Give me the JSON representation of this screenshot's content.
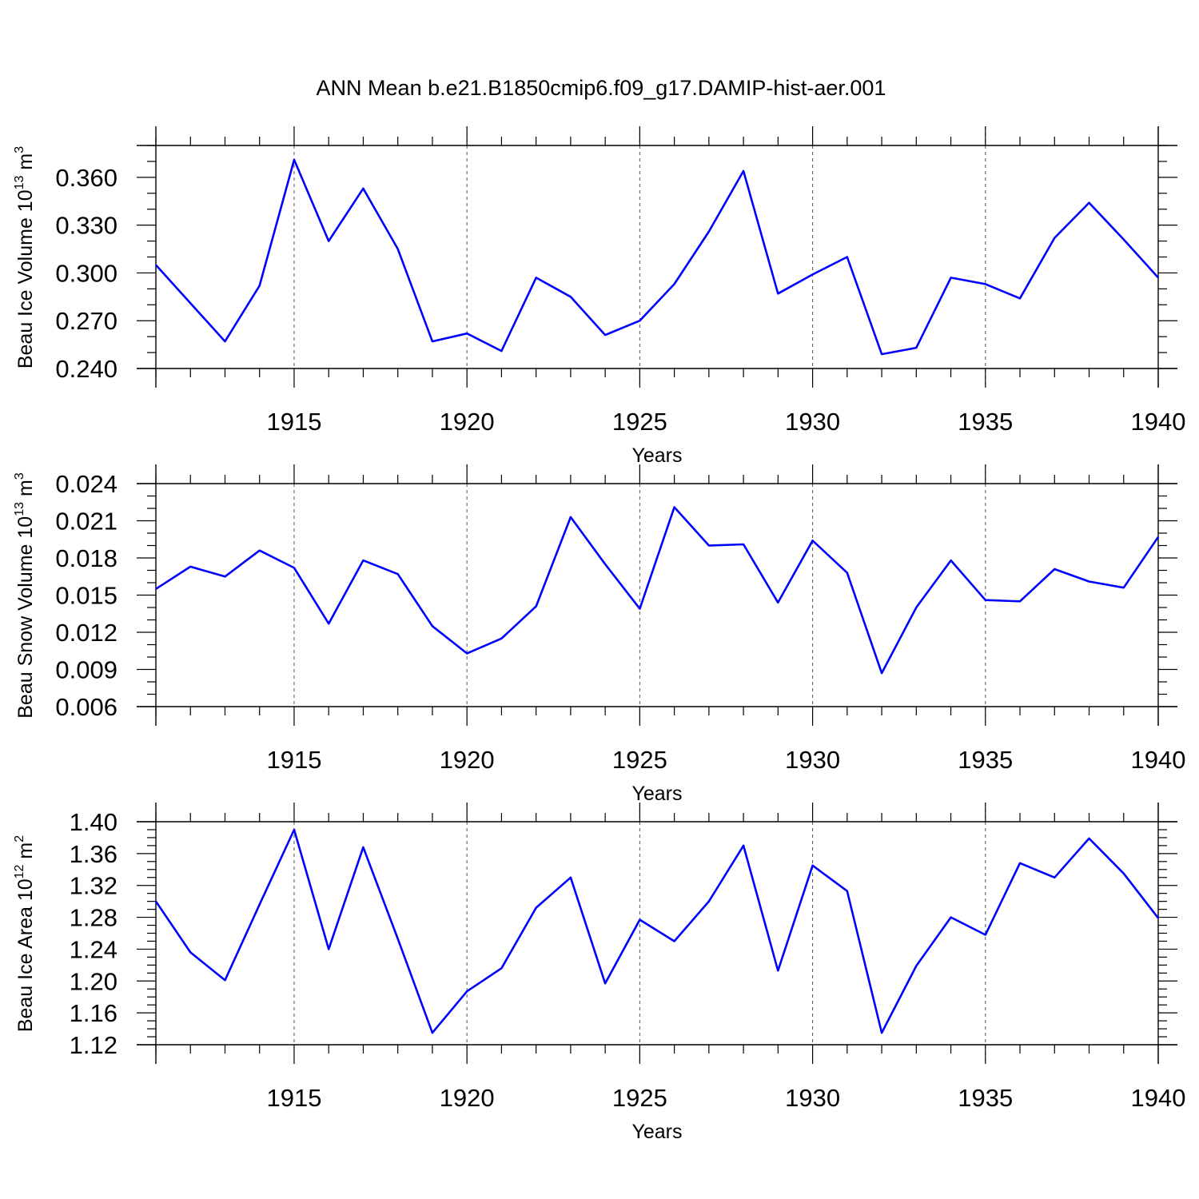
{
  "title": "ANN Mean b.e21.B1850cmip6.f09_g17.DAMIP-hist-aer.001",
  "colors": {
    "line": "#0000ff",
    "axis": "#000000",
    "grid": "#555555"
  },
  "chart_data": [
    {
      "type": "line",
      "ylabel": "Beau Ice Volume 10",
      "ylabel_exp": "13",
      "ylabel_unit": "m",
      "ylabel_unit_exp": "3",
      "xlabel": "Years",
      "xlim": [
        1911,
        1940
      ],
      "ylim": [
        0.24,
        0.38
      ],
      "yticks": [
        0.24,
        0.27,
        0.3,
        0.33,
        0.36
      ],
      "ytick_labels": [
        "0.240",
        "0.270",
        "0.300",
        "0.330",
        "0.360"
      ],
      "yminor": 0.01,
      "xticks": [
        1915,
        1920,
        1925,
        1930,
        1935,
        1940
      ],
      "xtick_labels": [
        "1915",
        "1920",
        "1925",
        "1930",
        "1935",
        "1940"
      ],
      "grid_x": [
        1915,
        1920,
        1925,
        1930,
        1935
      ],
      "x": [
        1911,
        1912,
        1913,
        1914,
        1915,
        1916,
        1917,
        1918,
        1919,
        1920,
        1921,
        1922,
        1923,
        1924,
        1925,
        1926,
        1927,
        1928,
        1929,
        1930,
        1931,
        1932,
        1933,
        1934,
        1935,
        1936,
        1937,
        1938,
        1939,
        1940
      ],
      "values": [
        0.305,
        0.281,
        0.257,
        0.292,
        0.371,
        0.32,
        0.353,
        0.315,
        0.257,
        0.262,
        0.251,
        0.297,
        0.285,
        0.261,
        0.27,
        0.293,
        0.326,
        0.364,
        0.287,
        0.299,
        0.31,
        0.249,
        0.253,
        0.297,
        0.293,
        0.284,
        0.322,
        0.344,
        0.321,
        0.297
      ]
    },
    {
      "type": "line",
      "ylabel": "Beau Snow Volume 10",
      "ylabel_exp": "13",
      "ylabel_unit": "m",
      "ylabel_unit_exp": "3",
      "xlabel": "Years",
      "xlim": [
        1911,
        1940
      ],
      "ylim": [
        0.006,
        0.024
      ],
      "yticks": [
        0.006,
        0.009,
        0.012,
        0.015,
        0.018,
        0.021,
        0.024
      ],
      "ytick_labels": [
        "0.006",
        "0.009",
        "0.012",
        "0.015",
        "0.018",
        "0.021",
        "0.024"
      ],
      "yminor": 0.001,
      "xticks": [
        1915,
        1920,
        1925,
        1930,
        1935,
        1940
      ],
      "xtick_labels": [
        "1915",
        "1920",
        "1925",
        "1930",
        "1935",
        "1940"
      ],
      "grid_x": [
        1915,
        1920,
        1925,
        1930,
        1935
      ],
      "x": [
        1911,
        1912,
        1913,
        1914,
        1915,
        1916,
        1917,
        1918,
        1919,
        1920,
        1921,
        1922,
        1923,
        1924,
        1925,
        1926,
        1927,
        1928,
        1929,
        1930,
        1931,
        1932,
        1933,
        1934,
        1935,
        1936,
        1937,
        1938,
        1939,
        1940
      ],
      "values": [
        0.0155,
        0.0173,
        0.0165,
        0.0186,
        0.0172,
        0.0127,
        0.0178,
        0.0167,
        0.0125,
        0.0103,
        0.0115,
        0.0141,
        0.0213,
        0.0175,
        0.0139,
        0.0221,
        0.019,
        0.0191,
        0.0144,
        0.0194,
        0.0168,
        0.0087,
        0.014,
        0.0178,
        0.0146,
        0.0145,
        0.0171,
        0.0161,
        0.0156,
        0.0197
      ]
    },
    {
      "type": "line",
      "ylabel": "Beau Ice Area 10",
      "ylabel_exp": "12",
      "ylabel_unit": "m",
      "ylabel_unit_exp": "2",
      "xlabel": "Years",
      "xlim": [
        1911,
        1940
      ],
      "ylim": [
        1.12,
        1.4
      ],
      "yticks": [
        1.12,
        1.16,
        1.2,
        1.24,
        1.28,
        1.32,
        1.36,
        1.4
      ],
      "ytick_labels": [
        "1.12",
        "1.16",
        "1.20",
        "1.24",
        "1.28",
        "1.32",
        "1.36",
        "1.40"
      ],
      "yminor": 0.01,
      "xticks": [
        1915,
        1920,
        1925,
        1930,
        1935,
        1940
      ],
      "xtick_labels": [
        "1915",
        "1920",
        "1925",
        "1930",
        "1935",
        "1940"
      ],
      "grid_x": [
        1915,
        1920,
        1925,
        1930,
        1935
      ],
      "x": [
        1911,
        1912,
        1913,
        1914,
        1915,
        1916,
        1917,
        1918,
        1919,
        1920,
        1921,
        1922,
        1923,
        1924,
        1925,
        1926,
        1927,
        1928,
        1929,
        1930,
        1931,
        1932,
        1933,
        1934,
        1935,
        1936,
        1937,
        1938,
        1939,
        1940
      ],
      "values": [
        1.3,
        1.236,
        1.201,
        1.296,
        1.39,
        1.24,
        1.368,
        1.253,
        1.135,
        1.187,
        1.216,
        1.292,
        1.33,
        1.197,
        1.277,
        1.25,
        1.3,
        1.37,
        1.213,
        1.345,
        1.313,
        1.135,
        1.219,
        1.28,
        1.258,
        1.348,
        1.33,
        1.379,
        1.335,
        1.279
      ]
    }
  ]
}
